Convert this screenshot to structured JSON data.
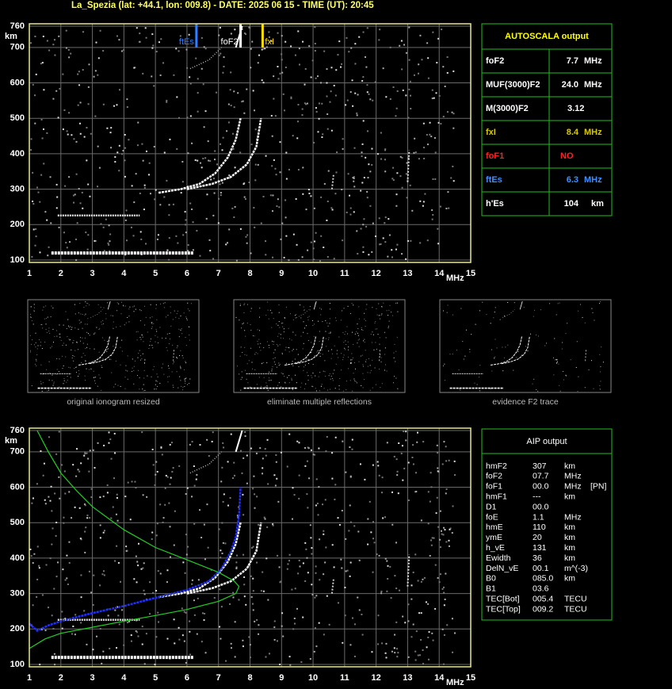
{
  "header": "La_Spezia (lat: +44.1, lon: 009.8) - DATE: 2025 06 15 - TIME (UT): 20:45",
  "ionogram": {
    "xticks": [
      1,
      2,
      3,
      4,
      5,
      6,
      7,
      8,
      9,
      10,
      11,
      12,
      13,
      14,
      15
    ],
    "x_unit": "MHz",
    "yticks": [
      100,
      200,
      300,
      400,
      500,
      600,
      700,
      760
    ],
    "y_unit": "km"
  },
  "markers": [
    {
      "label": "ftEs",
      "color": "#2f7fff"
    },
    {
      "label": "foF2",
      "color": "#ffffff"
    },
    {
      "label": "fxI",
      "color": "#ffe000"
    }
  ],
  "autoscala": {
    "title": "AUTOSCALA output",
    "rows": [
      {
        "label": "foF2",
        "value": "7.7",
        "unit": "MHz",
        "color": "#ffffff"
      },
      {
        "label": "MUF(3000)F2",
        "value": "24.0",
        "unit": "MHz",
        "color": "#ffffff"
      },
      {
        "label": "M(3000)F2",
        "value": "3.12",
        "color": "#ffffff"
      },
      {
        "label": "fxI",
        "value": "8.4",
        "unit": "MHz",
        "color": "#d8c800"
      },
      {
        "label": "foF1",
        "value": "NO",
        "color": "#ff2020"
      },
      {
        "label": "ftEs",
        "value": "6.3",
        "unit": "MHz",
        "color": "#3f8fff"
      },
      {
        "label": "h'Es",
        "value": "104",
        "unit": "km",
        "color": "#ffffff"
      }
    ]
  },
  "thumbnails": [
    "original ionogram resized",
    "eliminate multiple reflections",
    "evidence F2 trace"
  ],
  "aip": {
    "title": "AIP output",
    "rows": [
      [
        "hmF2",
        "307",
        "km"
      ],
      [
        "foF2",
        "07.7",
        "MHz"
      ],
      [
        "foF1",
        "00.0",
        "MHz",
        "[PN]"
      ],
      [
        "hmF1",
        "---",
        "km"
      ],
      [
        "D1",
        "00.0"
      ],
      [
        "foE",
        "1.1",
        "MHz"
      ],
      [
        "hmE",
        "110",
        "km"
      ],
      [
        "ymE",
        "20",
        "km"
      ],
      [
        "h_vE",
        "131",
        "km"
      ],
      [
        "Ewidth",
        "36",
        "km"
      ],
      [
        "DelN_vE",
        "00.1",
        "m^(-3)"
      ],
      [
        "B0",
        "085.0",
        "km"
      ],
      [
        "B1",
        "03.6"
      ],
      [
        "TEC[Bot]",
        "005.4",
        "TECU"
      ],
      [
        "TEC[Top]",
        "009.2",
        "TECU"
      ]
    ]
  }
}
